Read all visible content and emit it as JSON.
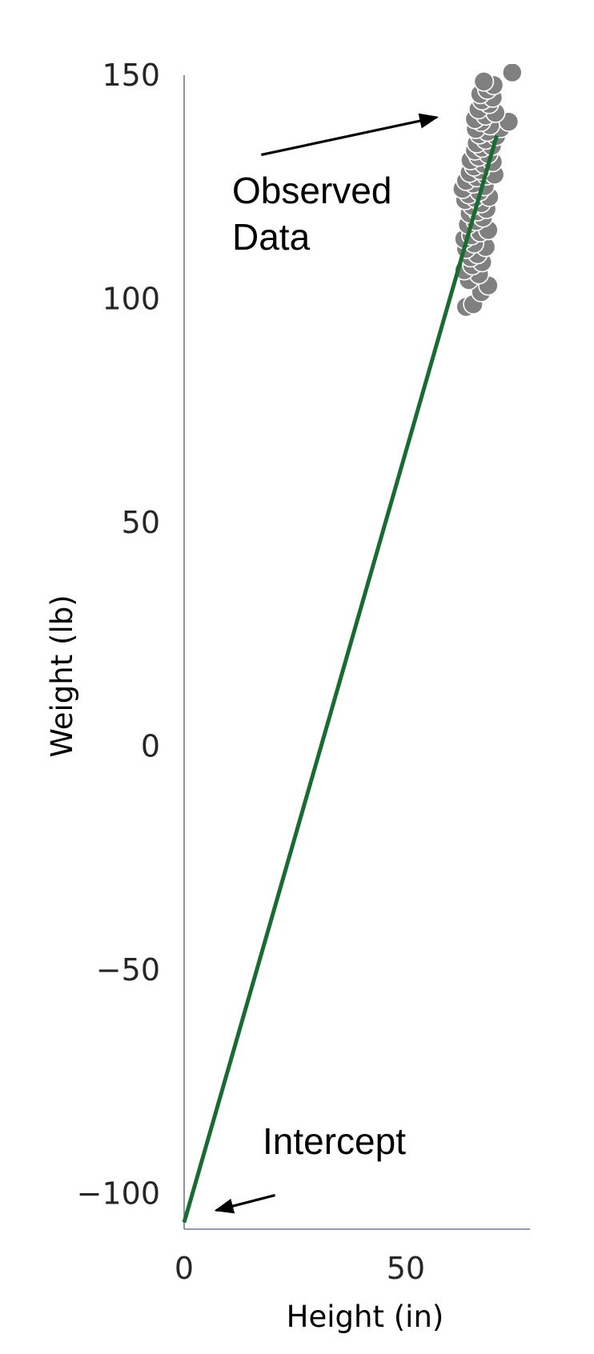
{
  "chart_data": {
    "type": "scatter",
    "xlabel": "Height (in)",
    "ylabel": "Weight (lb)",
    "xlim": [
      0,
      78
    ],
    "ylim": [
      -108,
      150
    ],
    "x_ticks": [
      0,
      50
    ],
    "x_tick_labels": [
      "0",
      "50"
    ],
    "y_ticks": [
      -100,
      -50,
      0,
      50,
      100,
      150
    ],
    "y_tick_labels": [
      "−100",
      "−50",
      "0",
      "50",
      "100",
      "150"
    ],
    "grid": false,
    "legend": "none",
    "series": [
      {
        "kind": "scatter",
        "color": "#808080",
        "edgecolor": "#ffffff",
        "points": [
          [
            63.6,
            98.2
          ],
          [
            65.2,
            98.8
          ],
          [
            67.0,
            101.5
          ],
          [
            68.6,
            103.0
          ],
          [
            64.2,
            104.2
          ],
          [
            66.5,
            105.5
          ],
          [
            63.2,
            106.4
          ],
          [
            65.0,
            107.5
          ],
          [
            67.2,
            108.2
          ],
          [
            64.6,
            109.3
          ],
          [
            66.2,
            110.0
          ],
          [
            63.6,
            111.2
          ],
          [
            68.0,
            111.6
          ],
          [
            65.4,
            112.4
          ],
          [
            63.2,
            113.4
          ],
          [
            64.8,
            114.2
          ],
          [
            66.8,
            114.9
          ],
          [
            68.6,
            115.4
          ],
          [
            64.0,
            116.6
          ],
          [
            65.8,
            117.4
          ],
          [
            67.4,
            118.2
          ],
          [
            64.4,
            119.1
          ],
          [
            66.2,
            119.6
          ],
          [
            68.2,
            120.1
          ],
          [
            65.0,
            120.8
          ],
          [
            67.0,
            121.4
          ],
          [
            63.4,
            122.1
          ],
          [
            65.6,
            122.6
          ],
          [
            68.8,
            122.8
          ],
          [
            64.2,
            123.4
          ],
          [
            66.6,
            124.0
          ],
          [
            62.8,
            124.6
          ],
          [
            67.8,
            125.2
          ],
          [
            65.2,
            125.8
          ],
          [
            63.6,
            126.4
          ],
          [
            66.0,
            127.2
          ],
          [
            68.2,
            127.6
          ],
          [
            70.0,
            127.8
          ],
          [
            64.4,
            128.2
          ],
          [
            66.8,
            128.8
          ],
          [
            65.4,
            129.6
          ],
          [
            67.6,
            130.2
          ],
          [
            69.6,
            130.6
          ],
          [
            64.6,
            131.0
          ],
          [
            66.4,
            131.8
          ],
          [
            68.6,
            132.4
          ],
          [
            65.6,
            133.2
          ],
          [
            67.2,
            133.8
          ],
          [
            69.4,
            134.2
          ],
          [
            66.0,
            134.8
          ],
          [
            68.0,
            135.6
          ],
          [
            70.4,
            136.4
          ],
          [
            66.6,
            136.8
          ],
          [
            68.4,
            137.4
          ],
          [
            65.8,
            138.0
          ],
          [
            71.4,
            138.2
          ],
          [
            69.0,
            138.8
          ],
          [
            67.0,
            139.6
          ],
          [
            73.2,
            139.6
          ],
          [
            65.6,
            140.2
          ],
          [
            68.0,
            141.0
          ],
          [
            70.2,
            141.6
          ],
          [
            66.4,
            142.4
          ],
          [
            68.8,
            143.6
          ],
          [
            67.2,
            144.4
          ],
          [
            69.6,
            145.0
          ],
          [
            66.8,
            145.8
          ],
          [
            68.4,
            146.8
          ],
          [
            69.8,
            147.8
          ],
          [
            67.6,
            148.6
          ],
          [
            74.0,
            150.6
          ]
        ]
      },
      {
        "kind": "line",
        "color": "#1a6b32",
        "x": [
          0,
          70.5
        ],
        "y": [
          -106.5,
          136.5
        ]
      }
    ],
    "annotations": [
      {
        "id": "observed",
        "lines": [
          "Observed",
          "Data"
        ],
        "arrow_tail": [
          17.4,
          132.2
        ],
        "arrow_head": [
          57.0,
          140.6
        ]
      },
      {
        "id": "intercept",
        "lines": [
          "Intercept"
        ],
        "arrow_tail": [
          20.5,
          -100.4
        ],
        "arrow_head": [
          7.2,
          -103.8
        ]
      }
    ],
    "colors": {
      "axis": "#6b7a92",
      "tick_text": "#262626",
      "label_text": "#000000",
      "arrow": "#000000"
    }
  }
}
